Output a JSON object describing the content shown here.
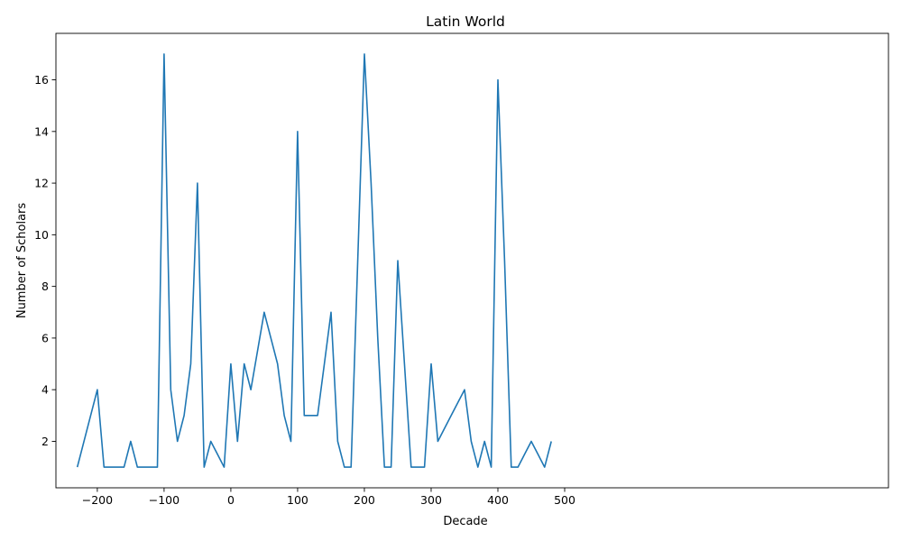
{
  "chart_data": {
    "type": "line",
    "title": "Latin World",
    "xlabel": "Decade",
    "ylabel": "Number of Scholars",
    "xlim": [
      -262,
      985
    ],
    "ylim": [
      0.2,
      17.8
    ],
    "xticks": [
      -200,
      -100,
      0,
      100,
      200,
      300,
      400,
      500
    ],
    "yticks": [
      2,
      4,
      6,
      8,
      10,
      12,
      14,
      16
    ],
    "grid": false,
    "legend": "none",
    "series": [
      {
        "color": "#1f77b4",
        "x": [
          -230,
          -200,
          -190,
          -180,
          -170,
          -160,
          -150,
          -140,
          -130,
          -120,
          -110,
          -100,
          -90,
          -80,
          -70,
          -60,
          -50,
          -40,
          -30,
          -20,
          -10,
          0,
          10,
          20,
          30,
          40,
          50,
          60,
          70,
          80,
          90,
          100,
          110,
          120,
          130,
          140,
          150,
          160,
          170,
          180,
          190,
          200,
          210,
          220,
          230,
          240,
          250,
          260,
          270,
          280,
          290,
          300,
          310,
          320,
          330,
          340,
          350,
          360,
          370,
          380,
          390,
          400,
          410,
          420,
          430,
          440,
          450,
          460,
          470,
          480
        ],
        "y": [
          1,
          4,
          1,
          1,
          1,
          1,
          2,
          1,
          1,
          1,
          1,
          17,
          4,
          2,
          3,
          5,
          12,
          1,
          2,
          1.5,
          1,
          5,
          2,
          5,
          4,
          5.5,
          7,
          6,
          5,
          3,
          2,
          14,
          3,
          3,
          3,
          5,
          7,
          2,
          1,
          1,
          9,
          17,
          12,
          6,
          1,
          1,
          9,
          5,
          1,
          1,
          1,
          5,
          2,
          2.5,
          3,
          3.5,
          4,
          2,
          1,
          2,
          1,
          16,
          9,
          1,
          1,
          1.5,
          2,
          1.5,
          1,
          2
        ]
      }
    ]
  }
}
